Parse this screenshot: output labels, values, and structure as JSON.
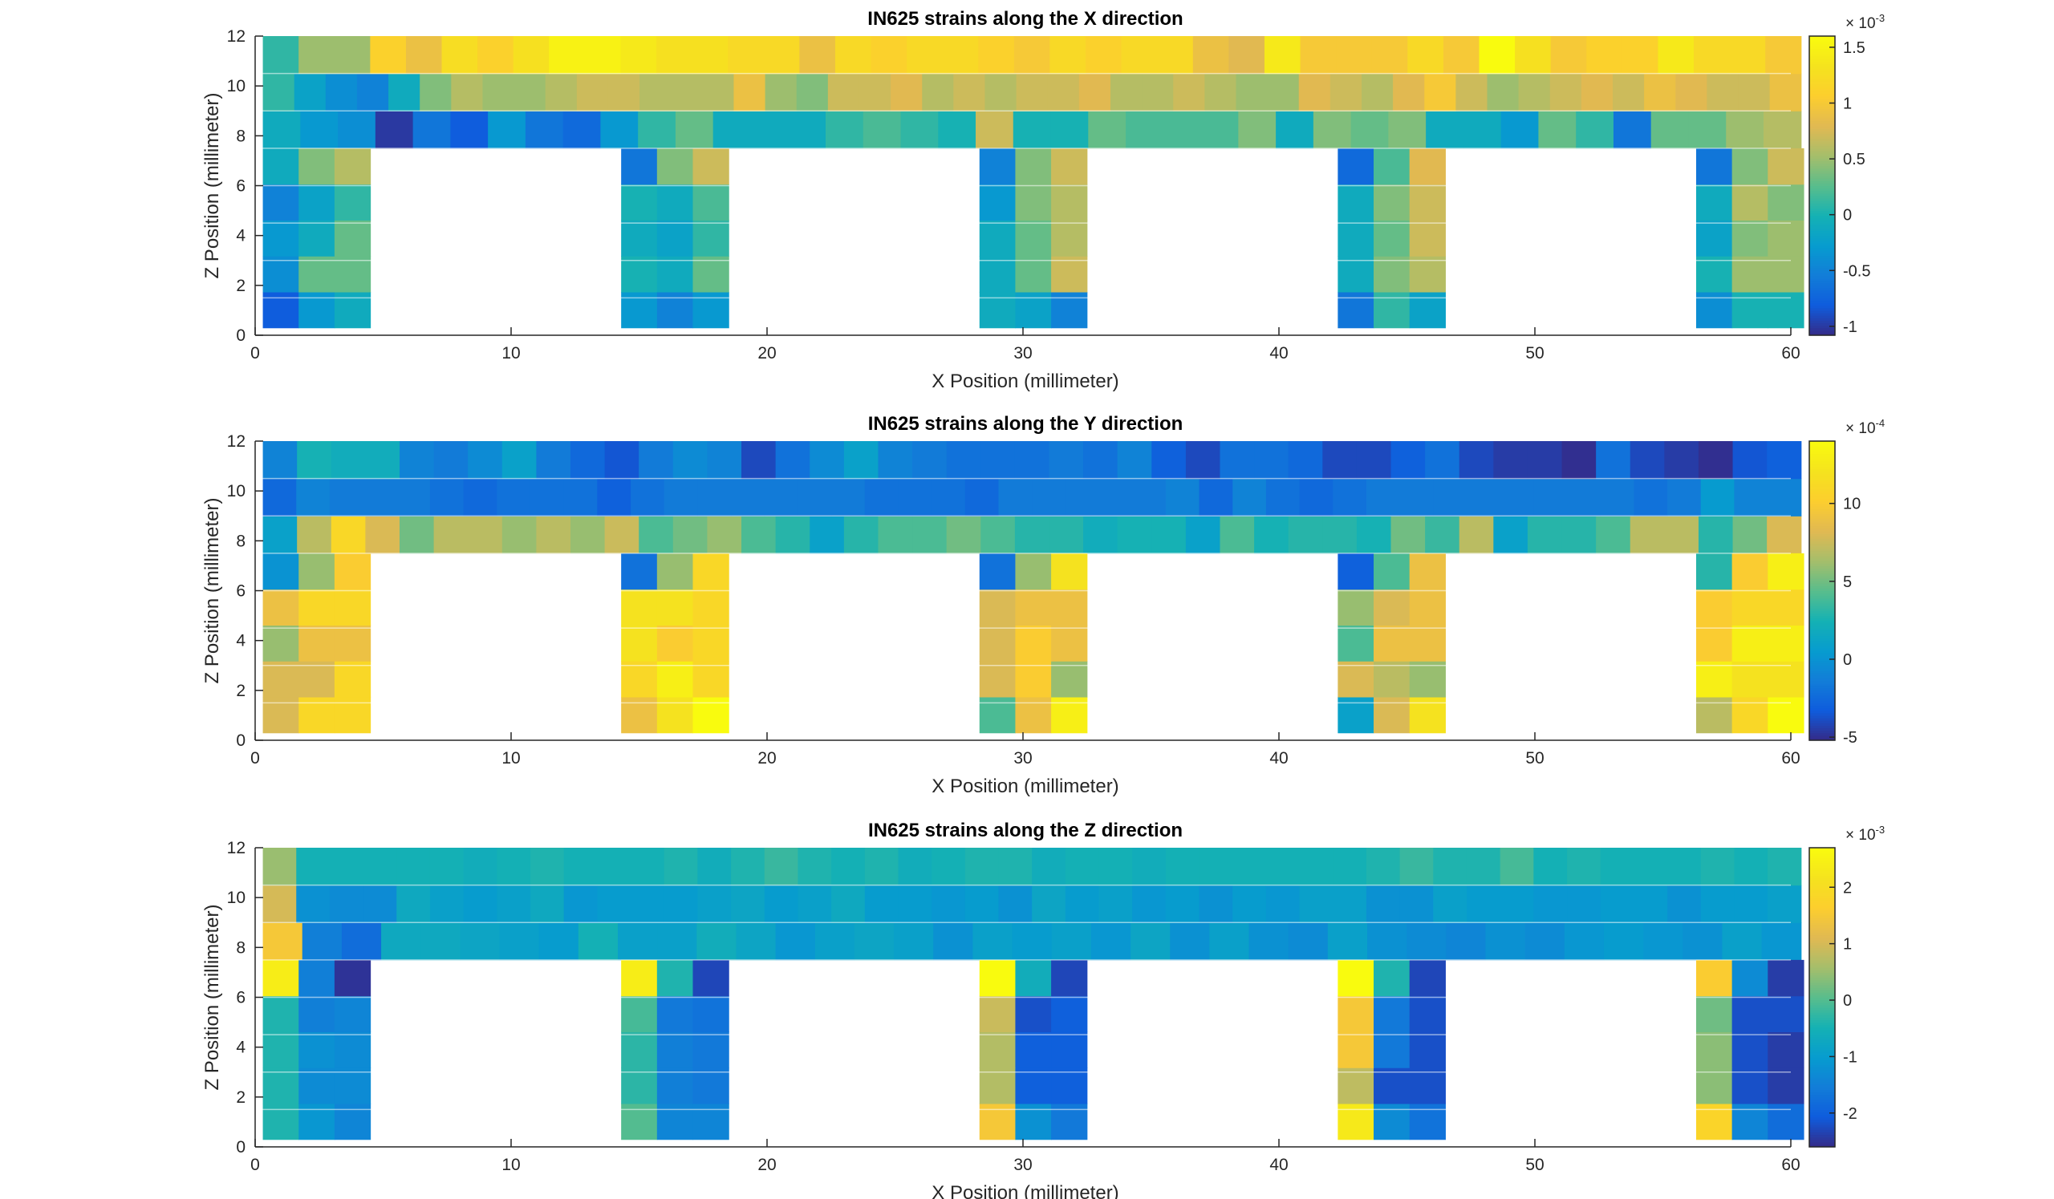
{
  "chart_data": [
    {
      "type": "heatmap",
      "title": "IN625 strains along the X direction",
      "xlabel": "X Position (millimeter)",
      "ylabel": "Z Position (millimeter)",
      "xlim": [
        0,
        60
      ],
      "ylim": [
        0,
        12
      ],
      "x_ticks": [
        "0",
        "10",
        "20",
        "30",
        "40",
        "50",
        "60"
      ],
      "y_ticks": [
        "0",
        "2",
        "4",
        "6",
        "8",
        "10",
        "12"
      ],
      "colorbar": {
        "exponent_base": "× 10",
        "exponent": "-3",
        "ticks": [
          "-1",
          "-0.5",
          "0",
          "0.5",
          "1",
          "1.5"
        ],
        "tick_values": [
          -1,
          -0.5,
          0,
          0.5,
          1,
          1.5
        ],
        "clim": [
          -1.08,
          1.6
        ]
      },
      "top_rows": {
        "row_10_5": [
          0.1,
          0.5,
          0.5,
          1.1,
          0.9,
          1.25,
          1.1,
          1.3,
          1.5,
          1.5,
          1.4,
          1.3,
          1.3,
          1.2,
          1.2,
          0.9,
          1.2,
          1.1,
          1.2,
          1.2,
          1.1,
          1.0,
          1.2,
          1.1,
          1.2,
          1.2,
          0.9,
          0.8,
          1.4,
          1.0,
          1.0,
          1.0,
          1.2,
          1.0,
          1.6,
          1.3,
          1.0,
          1.1,
          1.1,
          1.4,
          1.2,
          1.2,
          1.0
        ],
        "row_9_5": [
          0.1,
          -0.2,
          -0.4,
          -0.5,
          -0.1,
          0.4,
          0.6,
          0.5,
          0.5,
          0.6,
          0.7,
          0.7,
          0.6,
          0.6,
          0.6,
          0.9,
          0.5,
          0.4,
          0.7,
          0.7,
          0.8,
          0.6,
          0.7,
          0.6,
          0.7,
          0.7,
          0.8,
          0.6,
          0.6,
          0.7,
          0.6,
          0.5,
          0.5,
          0.8,
          0.7,
          0.6,
          0.8,
          1.0,
          0.7,
          0.5,
          0.6,
          0.7,
          0.8,
          0.7,
          0.9,
          0.8,
          0.7,
          0.7,
          0.9
        ],
        "row_8_5": [
          -0.1,
          -0.3,
          -0.4,
          -1.0,
          -0.6,
          -0.8,
          -0.3,
          -0.6,
          -0.7,
          -0.3,
          0.1,
          0.3,
          -0.1,
          -0.1,
          -0.1,
          0.1,
          0.2,
          0.1,
          0.0,
          0.7,
          0.0,
          0.0,
          0.3,
          0.2,
          0.2,
          0.2,
          0.4,
          -0.1,
          0.4,
          0.3,
          0.4,
          -0.1,
          -0.1,
          -0.3,
          0.3,
          0.1,
          -0.6,
          0.3,
          0.3,
          0.5,
          0.6
        ]
      },
      "legs": [
        {
          "x_start": 0.3,
          "values": [
            [
              -0.8,
              -0.3,
              -0.1
            ],
            [
              -0.4,
              0.3,
              0.3
            ],
            [
              -0.3,
              -0.1,
              0.3
            ],
            [
              -0.5,
              -0.2,
              0.1
            ],
            [
              -0.1,
              0.4,
              0.6
            ]
          ]
        },
        {
          "x_start": 14.3,
          "values": [
            [
              -0.3,
              -0.5,
              -0.3
            ],
            [
              0.0,
              -0.1,
              0.3
            ],
            [
              -0.1,
              -0.2,
              0.1
            ],
            [
              0.0,
              -0.1,
              0.2
            ],
            [
              -0.6,
              0.4,
              0.7
            ]
          ]
        },
        {
          "x_start": 28.3,
          "values": [
            [
              -0.1,
              -0.2,
              -0.5
            ],
            [
              -0.1,
              0.3,
              0.7
            ],
            [
              -0.1,
              0.3,
              0.6
            ],
            [
              -0.3,
              0.4,
              0.6
            ],
            [
              -0.5,
              0.4,
              0.7
            ]
          ]
        },
        {
          "x_start": 42.3,
          "values": [
            [
              -0.6,
              0.1,
              -0.2
            ],
            [
              -0.1,
              0.4,
              0.6
            ],
            [
              -0.1,
              0.3,
              0.7
            ],
            [
              -0.1,
              0.4,
              0.7
            ],
            [
              -0.7,
              0.2,
              0.8
            ]
          ]
        },
        {
          "x_start": 56.3,
          "values": [
            [
              -0.4,
              0.0,
              0.0
            ],
            [
              0.0,
              0.5,
              0.5
            ],
            [
              -0.2,
              0.4,
              0.5
            ],
            [
              -0.1,
              0.6,
              0.4
            ],
            [
              -0.6,
              0.4,
              0.7
            ]
          ]
        }
      ]
    },
    {
      "type": "heatmap",
      "title": "IN625 strains along the Y direction",
      "xlabel": "X Position (millimeter)",
      "ylabel": "Z Position (millimeter)",
      "xlim": [
        0,
        60
      ],
      "ylim": [
        0,
        12
      ],
      "x_ticks": [
        "0",
        "10",
        "20",
        "30",
        "40",
        "50",
        "60"
      ],
      "y_ticks": [
        "0",
        "2",
        "4",
        "6",
        "8",
        "10",
        "12"
      ],
      "colorbar": {
        "exponent_base": "× 10",
        "exponent": "-4",
        "ticks": [
          "-5",
          "0",
          "5",
          "10"
        ],
        "tick_values": [
          -5,
          0,
          5,
          10
        ],
        "clim": [
          -5.2,
          14
        ]
      },
      "top_rows": {
        "row_10_5": [
          -1.0,
          2.5,
          2.0,
          2.0,
          -1.0,
          -1.5,
          -0.5,
          1.0,
          -1.5,
          -2.5,
          -3.5,
          -1.5,
          -0.5,
          -1.0,
          -4.0,
          -2.0,
          -0.5,
          1.0,
          -1.0,
          -1.5,
          -2.0,
          -2.0,
          -2.0,
          -1.5,
          -2.0,
          -1.0,
          -3.0,
          -4.0,
          -2.0,
          -2.0,
          -2.5,
          -4.0,
          -4.0,
          -3.0,
          -2.0,
          -4.0,
          -4.5,
          -4.5,
          -5.0,
          -2.0,
          -4.0,
          -4.5,
          -5.0,
          -3.5,
          -3.0
        ],
        "row_9_5": [
          -2.5,
          -1.0,
          -1.5,
          -1.5,
          -1.5,
          -2.0,
          -2.5,
          -2.0,
          -2.0,
          -2.0,
          -3.0,
          -2.0,
          -1.5,
          -1.5,
          -1.5,
          -1.5,
          -1.5,
          -1.5,
          -2.0,
          -2.0,
          -2.0,
          -2.5,
          -1.5,
          -1.5,
          -1.5,
          -1.5,
          -1.5,
          -1.0,
          -2.5,
          -1.0,
          -2.0,
          -2.5,
          -2.0,
          -1.5,
          -1.5,
          -1.5,
          -1.5,
          -1.5,
          -1.5,
          -1.5,
          -1.5,
          -2.0,
          -1.5,
          0.5,
          -1.0,
          -1.0
        ],
        "row_8_5": [
          1.0,
          7.0,
          11.0,
          8.0,
          5.0,
          7.0,
          7.0,
          6.0,
          7.0,
          6.0,
          7.5,
          4.0,
          5.0,
          6.0,
          4.0,
          3.0,
          1.0,
          3.0,
          4.0,
          4.0,
          5.0,
          4.0,
          3.0,
          3.0,
          2.0,
          2.5,
          2.5,
          1.0,
          4.0,
          2.5,
          3.0,
          3.0,
          2.5,
          5.0,
          3.5,
          7.0,
          1.0,
          3.0,
          3.0,
          4.0,
          7.0,
          7.0,
          3.0,
          5.0,
          8.0
        ]
      },
      "legs": [
        {
          "x_start": 0.3,
          "values": [
            [
              8.0,
              11.0,
              11.0
            ],
            [
              8.0,
              8.0,
              11.0
            ],
            [
              6.0,
              9.0,
              9.0
            ],
            [
              9.0,
              11.0,
              11.0
            ],
            [
              0.0,
              6.0,
              10.0
            ]
          ]
        },
        {
          "x_start": 14.3,
          "values": [
            [
              9.0,
              12.0,
              14.0
            ],
            [
              11.0,
              13.0,
              11.0
            ],
            [
              12.0,
              10.0,
              11.0
            ],
            [
              12.0,
              12.0,
              11.0
            ],
            [
              -2.0,
              6.0,
              11.0
            ]
          ]
        },
        {
          "x_start": 28.3,
          "values": [
            [
              4.0,
              9.0,
              13.0
            ],
            [
              8.0,
              10.0,
              6.0
            ],
            [
              8.0,
              10.0,
              9.0
            ],
            [
              8.0,
              9.0,
              9.0
            ],
            [
              -2.0,
              6.0,
              12.0
            ]
          ]
        },
        {
          "x_start": 42.3,
          "values": [
            [
              1.0,
              8.0,
              12.0
            ],
            [
              8.0,
              7.0,
              6.0
            ],
            [
              4.0,
              9.0,
              9.0
            ],
            [
              6.0,
              8.0,
              9.0
            ],
            [
              -3.0,
              4.0,
              9.0
            ]
          ]
        },
        {
          "x_start": 56.3,
          "values": [
            [
              7.0,
              11.0,
              14.0
            ],
            [
              13.0,
              12.0,
              12.0
            ],
            [
              10.0,
              13.0,
              13.0
            ],
            [
              10.0,
              11.0,
              11.0
            ],
            [
              3.0,
              10.0,
              13.0
            ]
          ]
        }
      ]
    },
    {
      "type": "heatmap",
      "title": "IN625 strains along the Z direction",
      "xlabel": "X Position (millimeter)",
      "ylabel": "Z Position (millimeter)",
      "xlim": [
        0,
        60
      ],
      "ylim": [
        0,
        12
      ],
      "x_ticks": [
        "0",
        "10",
        "20",
        "30",
        "40",
        "50",
        "60"
      ],
      "y_ticks": [
        "0",
        "2",
        "4",
        "6",
        "8",
        "10",
        "12"
      ],
      "colorbar": {
        "exponent_base": "× 10",
        "exponent": "-3",
        "ticks": [
          "-2",
          "-1",
          "0",
          "1",
          "2"
        ],
        "tick_values": [
          -2,
          -1,
          0,
          1,
          2
        ],
        "clim": [
          -2.6,
          2.7
        ]
      },
      "top_rows": {
        "row_10_5": [
          0.5,
          -0.5,
          -0.5,
          -0.5,
          -0.5,
          -0.5,
          -0.6,
          -0.5,
          -0.4,
          -0.5,
          -0.5,
          -0.5,
          -0.4,
          -0.6,
          -0.4,
          -0.2,
          -0.4,
          -0.5,
          -0.4,
          -0.6,
          -0.5,
          -0.4,
          -0.4,
          -0.6,
          -0.5,
          -0.5,
          -0.6,
          -0.5,
          -0.5,
          -0.5,
          -0.5,
          -0.5,
          -0.5,
          -0.4,
          -0.2,
          -0.4,
          -0.4,
          -0.1,
          -0.5,
          -0.4,
          -0.5,
          -0.5,
          -0.5,
          -0.4,
          -0.5,
          -0.4
        ],
        "row_9_5": [
          1.0,
          -1.2,
          -1.3,
          -1.3,
          -0.7,
          -0.9,
          -1.0,
          -0.9,
          -0.7,
          -1.1,
          -1.0,
          -1.0,
          -1.0,
          -0.9,
          -0.8,
          -1.0,
          -0.9,
          -0.7,
          -1.0,
          -1.0,
          -1.1,
          -1.0,
          -1.2,
          -0.8,
          -1.0,
          -0.9,
          -1.1,
          -1.0,
          -1.2,
          -1.0,
          -1.1,
          -0.9,
          -0.9,
          -1.2,
          -1.2,
          -0.9,
          -1.0,
          -1.0,
          -1.1,
          -1.1,
          -1.0,
          -1.0,
          -1.2,
          -1.0,
          -1.0,
          -0.9
        ],
        "row_8_5": [
          1.5,
          -1.5,
          -1.8,
          -0.7,
          -0.7,
          -0.8,
          -0.9,
          -1.0,
          -0.5,
          -0.9,
          -0.9,
          -0.6,
          -0.8,
          -1.1,
          -0.9,
          -0.8,
          -0.9,
          -1.2,
          -0.9,
          -1.0,
          -0.9,
          -1.1,
          -0.8,
          -1.2,
          -0.9,
          -1.2,
          -1.3,
          -0.9,
          -1.2,
          -1.3,
          -1.4,
          -1.2,
          -1.3,
          -1.1,
          -1.0,
          -1.1,
          -1.2,
          -0.9,
          -1.1
        ]
      },
      "legs": [
        {
          "x_start": 0.3,
          "values": [
            [
              -0.4,
              -1.1,
              -1.4
            ],
            [
              -0.4,
              -1.3,
              -1.3
            ],
            [
              -0.4,
              -1.2,
              -1.3
            ],
            [
              -0.4,
              -1.5,
              -1.4
            ],
            [
              2.4,
              -1.5,
              -2.5
            ]
          ]
        },
        {
          "x_start": 14.3,
          "values": [
            [
              0.0,
              -1.4,
              -1.4
            ],
            [
              -0.3,
              -1.5,
              -1.6
            ],
            [
              -0.3,
              -1.5,
              -1.6
            ],
            [
              -0.1,
              -1.6,
              -1.7
            ],
            [
              2.4,
              -0.4,
              -2.3
            ]
          ]
        },
        {
          "x_start": 28.3,
          "values": [
            [
              1.5,
              -1.2,
              -1.6
            ],
            [
              0.7,
              -2.0,
              -2.0
            ],
            [
              0.7,
              -2.0,
              -2.0
            ],
            [
              0.9,
              -2.2,
              -2.0
            ],
            [
              2.7,
              -0.6,
              -2.3
            ]
          ]
        },
        {
          "x_start": 42.3,
          "values": [
            [
              2.3,
              -1.3,
              -1.7
            ],
            [
              0.8,
              -2.2,
              -2.2
            ],
            [
              1.5,
              -1.6,
              -2.2
            ],
            [
              1.5,
              -1.6,
              -2.2
            ],
            [
              2.7,
              -0.4,
              -2.3
            ]
          ]
        },
        {
          "x_start": 56.3,
          "values": [
            [
              1.8,
              -1.4,
              -1.8
            ],
            [
              0.4,
              -2.2,
              -2.4
            ],
            [
              0.4,
              -2.2,
              -2.4
            ],
            [
              0.2,
              -2.2,
              -2.2
            ],
            [
              1.6,
              -1.3,
              -2.4
            ]
          ]
        }
      ]
    }
  ]
}
